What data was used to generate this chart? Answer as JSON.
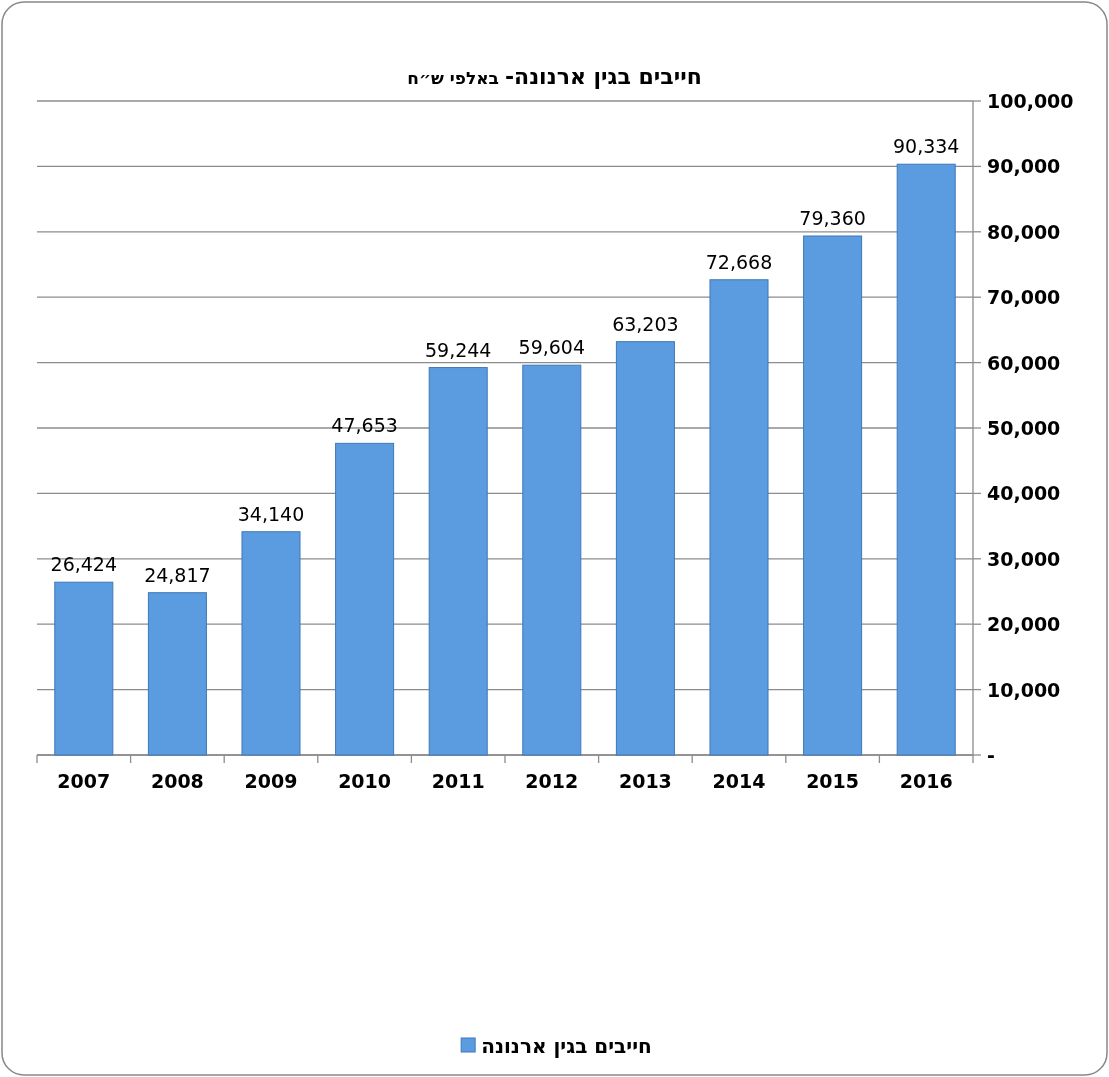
{
  "chart_data": {
    "type": "bar",
    "title": "**חייבים בגין ארנונה-** באלפי ש״ח",
    "categories": [
      "2007",
      "2008",
      "2009",
      "2010",
      "2011",
      "2012",
      "2013",
      "2014",
      "2015",
      "2016"
    ],
    "series": [
      {
        "name": "חייבים בגין ארנונה",
        "color": "#5b9be0",
        "values": [
          26424,
          24817,
          34140,
          47653,
          59244,
          59604,
          63203,
          72668,
          79360,
          90334
        ]
      }
    ],
    "value_labels": [
      "26,424",
      "24,817",
      "34,140",
      "47,653",
      "59,244",
      "59,604",
      "63,203",
      "72,668",
      "79,360",
      "90,334"
    ],
    "ylim": [
      0,
      100000
    ],
    "yticks": [
      {
        "value": 0,
        "label": "-"
      },
      {
        "value": 10000,
        "label": "10,000"
      },
      {
        "value": 20000,
        "label": "20,000"
      },
      {
        "value": 30000,
        "label": "30,000"
      },
      {
        "value": 40000,
        "label": "40,000"
      },
      {
        "value": 50000,
        "label": "50,000"
      },
      {
        "value": 60000,
        "label": "60,000"
      },
      {
        "value": 70000,
        "label": "70,000"
      },
      {
        "value": 80000,
        "label": "80,000"
      },
      {
        "value": 90000,
        "label": "90,000"
      },
      {
        "value": 100000,
        "label": "100,000"
      }
    ],
    "grid": "y",
    "legend": "bottom"
  }
}
